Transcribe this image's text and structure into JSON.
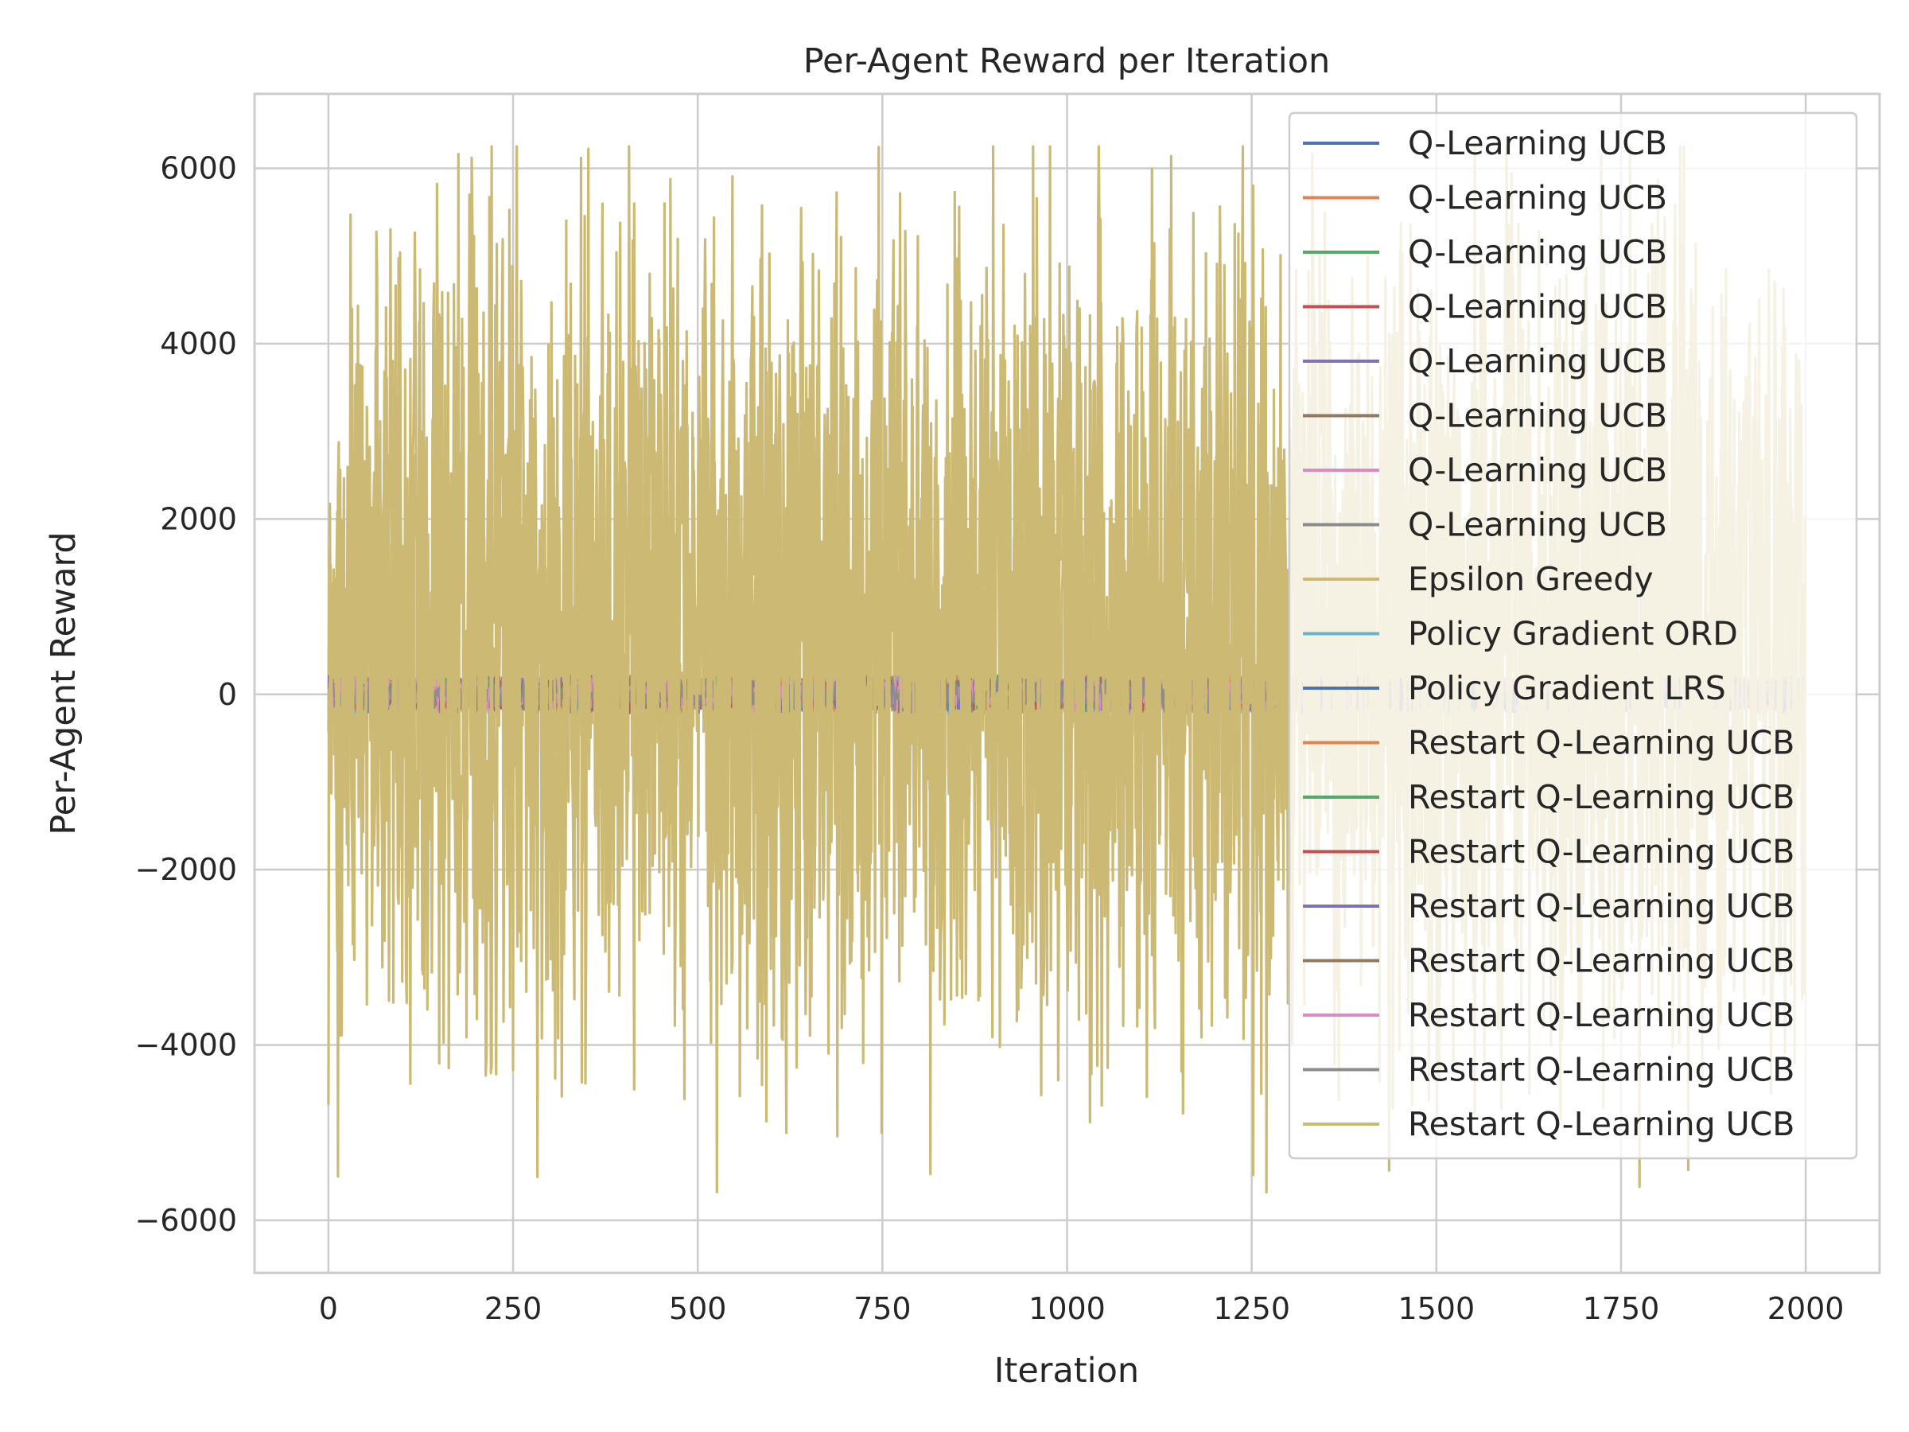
{
  "chart_data": {
    "type": "line",
    "title": "Per-Agent Reward per Iteration",
    "xlabel": "Iteration",
    "ylabel": "Per-Agent Reward",
    "xlim": [
      -100,
      2100
    ],
    "ylim": [
      -6600,
      6850
    ],
    "x_ticks": [
      0,
      250,
      500,
      750,
      1000,
      1250,
      1500,
      1750,
      2000
    ],
    "y_ticks": [
      -6000,
      -4000,
      -2000,
      0,
      2000,
      4000,
      6000
    ],
    "x_tick_labels": [
      "0",
      "250",
      "500",
      "750",
      "1000",
      "1250",
      "1500",
      "1750",
      "2000"
    ],
    "y_tick_labels": [
      "−6000",
      "−4000",
      "−2000",
      "0",
      "2000",
      "4000",
      "6000"
    ],
    "grid": true,
    "legend_position": "upper-right",
    "series": [
      {
        "name": "Q-Learning UCB",
        "color": "#4c72b0",
        "kind": "small",
        "amplitude": 150,
        "center": 150
      },
      {
        "name": "Q-Learning UCB",
        "color": "#dd8452",
        "kind": "small",
        "amplitude": 150,
        "center": 150
      },
      {
        "name": "Q-Learning UCB",
        "color": "#55a868",
        "kind": "small",
        "amplitude": 150,
        "center": 150
      },
      {
        "name": "Q-Learning UCB",
        "color": "#c44e52",
        "kind": "small",
        "amplitude": 150,
        "center": 150
      },
      {
        "name": "Q-Learning UCB",
        "color": "#8172b3",
        "kind": "small",
        "amplitude": 150,
        "center": 150
      },
      {
        "name": "Q-Learning UCB",
        "color": "#937860",
        "kind": "small",
        "amplitude": 150,
        "center": 150
      },
      {
        "name": "Q-Learning UCB",
        "color": "#da8bc3",
        "kind": "small",
        "amplitude": 150,
        "center": 150
      },
      {
        "name": "Q-Learning UCB",
        "color": "#8c8c8c",
        "kind": "small",
        "amplitude": 150,
        "center": 150
      },
      {
        "name": "Epsilon Greedy",
        "color": "#ccb974",
        "kind": "noise",
        "center": 600,
        "amplitude": 5700
      },
      {
        "name": "Policy Gradient ORD",
        "color": "#64b5cd",
        "kind": "small",
        "amplitude": 150,
        "center": 150
      },
      {
        "name": "Policy Gradient LRS",
        "color": "#4c72b0",
        "kind": "small",
        "amplitude": 150,
        "center": 150
      },
      {
        "name": "Restart Q-Learning UCB",
        "color": "#dd8452",
        "kind": "small",
        "amplitude": 150,
        "center": 150
      },
      {
        "name": "Restart Q-Learning UCB",
        "color": "#55a868",
        "kind": "small",
        "amplitude": 150,
        "center": 150
      },
      {
        "name": "Restart Q-Learning UCB",
        "color": "#c44e52",
        "kind": "small",
        "amplitude": 150,
        "center": 150
      },
      {
        "name": "Restart Q-Learning UCB",
        "color": "#8172b3",
        "kind": "small",
        "amplitude": 150,
        "center": 150
      },
      {
        "name": "Restart Q-Learning UCB",
        "color": "#937860",
        "kind": "small",
        "amplitude": 150,
        "center": 150
      },
      {
        "name": "Restart Q-Learning UCB",
        "color": "#da8bc3",
        "kind": "small",
        "amplitude": 150,
        "center": 150
      },
      {
        "name": "Restart Q-Learning UCB",
        "color": "#8c8c8c",
        "kind": "small",
        "amplitude": 150,
        "center": 150
      },
      {
        "name": "Restart Q-Learning UCB",
        "color": "#ccb974",
        "kind": "noise",
        "center": 600,
        "amplitude": 5700
      }
    ],
    "x_range": [
      0,
      1999
    ],
    "approximate_values": "series are dense noise; values per iteration not legible — Epsilon Greedy / Restart ranges roughly −6000 to 6250 around ~600, others within ±400 around 0"
  }
}
